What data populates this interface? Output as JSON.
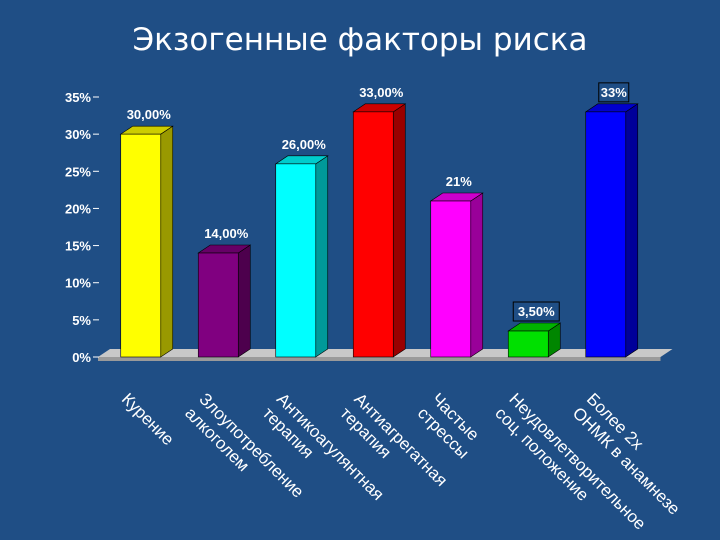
{
  "slide": {
    "title": "Экзогенные факторы риска",
    "background": "#1f4e85"
  },
  "chart_data": {
    "type": "bar",
    "title": "Экзогенные факторы риска",
    "xlabel": "",
    "ylabel": "",
    "ylim": [
      0,
      35
    ],
    "yticks": [
      "0%",
      "5%",
      "10%",
      "15%",
      "20%",
      "25%",
      "30%",
      "35%"
    ],
    "ytick_values": [
      0,
      5,
      10,
      15,
      20,
      25,
      30,
      35
    ],
    "grid": false,
    "legend": "none",
    "style": "3d-bars",
    "categories": [
      [
        "Курение"
      ],
      [
        "Злоупотребление",
        "алкоголем"
      ],
      [
        "Антикоагулянтная",
        "терапия"
      ],
      [
        "Антиагрегатная",
        "терапия"
      ],
      [
        "Частые",
        "стрессы"
      ],
      [
        "Неудовлетворительное",
        "соц. положение"
      ],
      [
        "Более 2х",
        "ОНМК в анамнезе"
      ]
    ],
    "values": [
      30.0,
      14.0,
      26.0,
      33.0,
      21.0,
      3.5,
      33.0
    ],
    "data_labels": [
      "30,00%",
      "14,00%",
      "26,00%",
      "33,00%",
      "21%",
      "3,50%",
      "33%"
    ],
    "boxed_labels": [
      false,
      false,
      false,
      false,
      false,
      true,
      true
    ],
    "colors": [
      "#ffff00",
      "#800080",
      "#00ffff",
      "#ff0000",
      "#ff00ff",
      "#00e000",
      "#0000ff"
    ]
  }
}
